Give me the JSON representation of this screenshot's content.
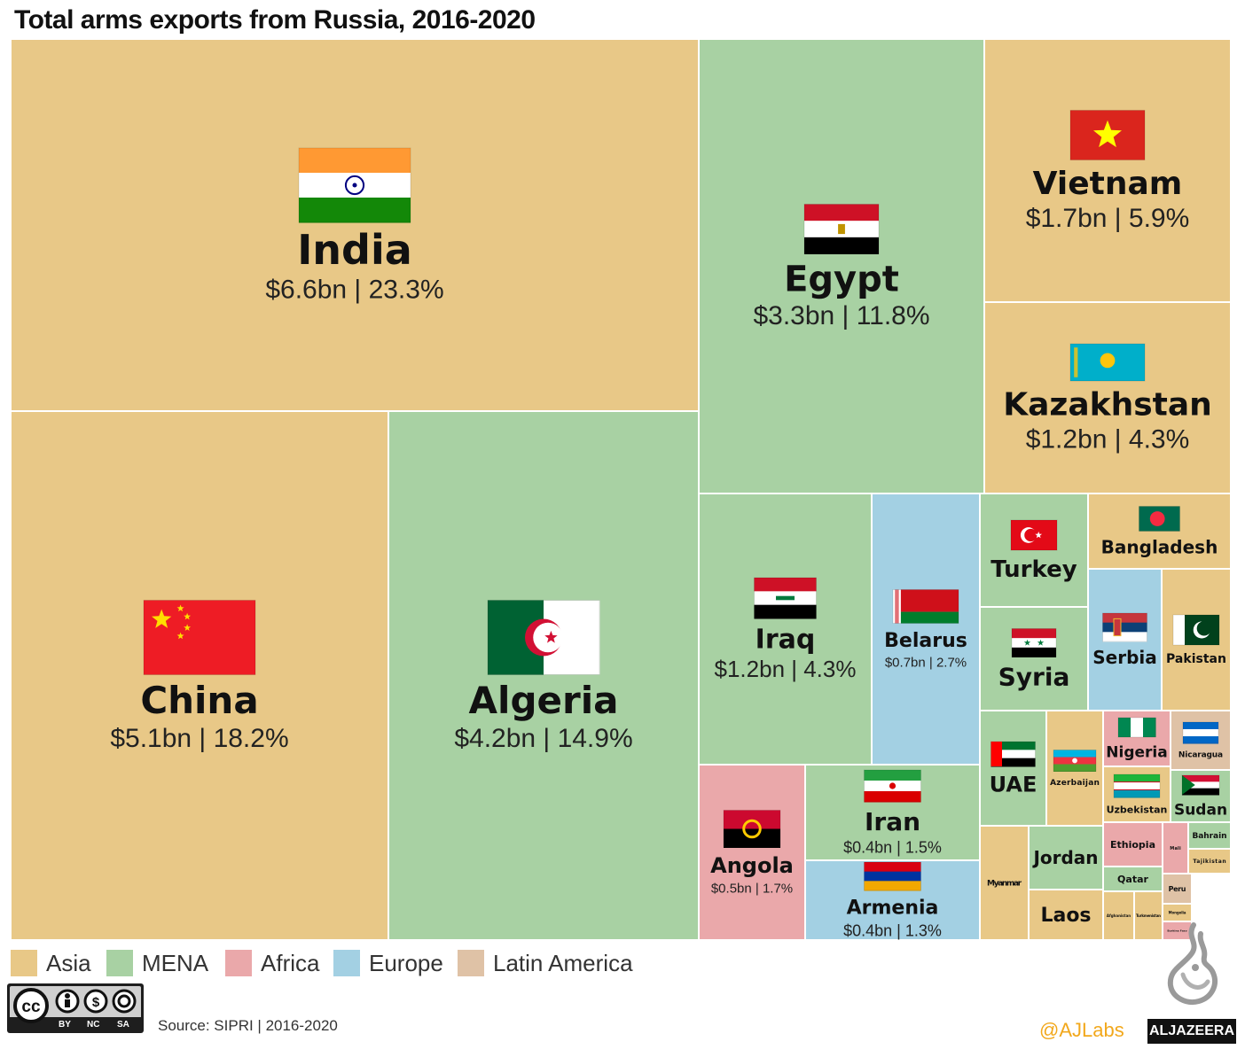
{
  "title": "Total arms exports from Russia, 2016-2020",
  "source": "Source: SIPRI | 2016-2020",
  "handle": "@AJLabs",
  "brand": "ALJAZEERA",
  "license_text": [
    "BY",
    "NC",
    "SA"
  ],
  "colors": {
    "Asia": "#e8c887",
    "MENA": "#a8d1a3",
    "Africa": "#eaa8aa",
    "Europe": "#a3d0e3",
    "Latin America": "#dfc2a6"
  },
  "legend": [
    "Asia",
    "MENA",
    "Africa",
    "Europe",
    "Latin America"
  ],
  "chart_data": {
    "type": "treemap",
    "title": "Total arms exports from Russia, 2016-2020",
    "unit": "USD billions",
    "series": [
      {
        "name": "India",
        "region": "Asia",
        "value": 6.6,
        "share": 23.3,
        "label": "$6.6bn | 23.3%"
      },
      {
        "name": "China",
        "region": "Asia",
        "value": 5.1,
        "share": 18.2,
        "label": "$5.1bn | 18.2%"
      },
      {
        "name": "Algeria",
        "region": "MENA",
        "value": 4.2,
        "share": 14.9,
        "label": "$4.2bn | 14.9%"
      },
      {
        "name": "Egypt",
        "region": "MENA",
        "value": 3.3,
        "share": 11.8,
        "label": "$3.3bn | 11.8%"
      },
      {
        "name": "Vietnam",
        "region": "Asia",
        "value": 1.7,
        "share": 5.9,
        "label": "$1.7bn | 5.9%"
      },
      {
        "name": "Kazakhstan",
        "region": "Asia",
        "value": 1.2,
        "share": 4.3,
        "label": "$1.2bn | 4.3%"
      },
      {
        "name": "Iraq",
        "region": "MENA",
        "value": 1.2,
        "share": 4.3,
        "label": "$1.2bn | 4.3%"
      },
      {
        "name": "Belarus",
        "region": "Europe",
        "value": 0.7,
        "share": 2.7,
        "label": "$0.7bn | 2.7%"
      },
      {
        "name": "Angola",
        "region": "Africa",
        "value": 0.5,
        "share": 1.7,
        "label": "$0.5bn | 1.7%"
      },
      {
        "name": "Iran",
        "region": "MENA",
        "value": 0.4,
        "share": 1.5,
        "label": "$0.4bn | 1.5%"
      },
      {
        "name": "Armenia",
        "region": "Europe",
        "value": 0.4,
        "share": 1.3,
        "label": "$0.4bn | 1.3%"
      },
      {
        "name": "Turkey",
        "region": "MENA"
      },
      {
        "name": "Bangladesh",
        "region": "Asia"
      },
      {
        "name": "Syria",
        "region": "MENA"
      },
      {
        "name": "Serbia",
        "region": "Europe"
      },
      {
        "name": "Pakistan",
        "region": "Asia"
      },
      {
        "name": "UAE",
        "region": "MENA"
      },
      {
        "name": "Azerbaijan",
        "region": "Asia"
      },
      {
        "name": "Nigeria",
        "region": "Africa"
      },
      {
        "name": "Nicaragua",
        "region": "Latin America"
      },
      {
        "name": "Uzbekistan",
        "region": "Asia"
      },
      {
        "name": "Sudan",
        "region": "MENA"
      },
      {
        "name": "Jordan",
        "region": "MENA"
      },
      {
        "name": "Myanmar",
        "region": "Asia"
      },
      {
        "name": "Laos",
        "region": "Asia"
      },
      {
        "name": "Ethiopia",
        "region": "Africa"
      },
      {
        "name": "Qatar",
        "region": "MENA"
      },
      {
        "name": "Mali",
        "region": "Africa"
      },
      {
        "name": "Bahrain",
        "region": "MENA"
      },
      {
        "name": "Tajikistan",
        "region": "Asia"
      },
      {
        "name": "Peru",
        "region": "Latin America"
      },
      {
        "name": "Mongolia",
        "region": "Asia"
      },
      {
        "name": "Burkina Faso",
        "region": "Africa"
      },
      {
        "name": "Afghanistan",
        "region": "Asia"
      },
      {
        "name": "Turkmenistan",
        "region": "Asia"
      }
    ]
  }
}
